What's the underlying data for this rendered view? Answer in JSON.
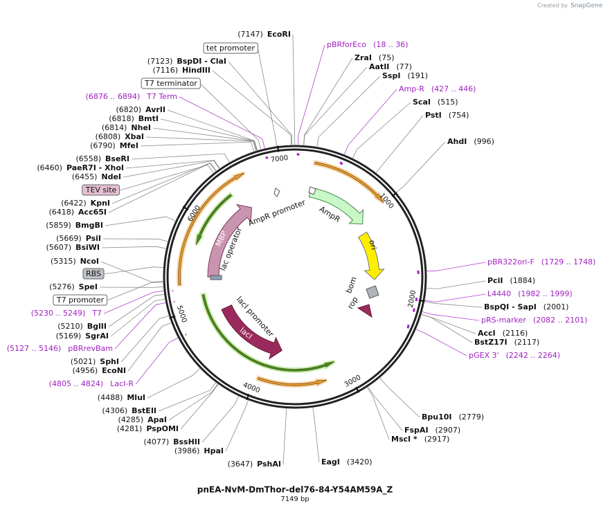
{
  "header": {
    "watermark": {
      "text": "Created by",
      "brand": "SnapGene"
    }
  },
  "map": {
    "title": "pnEA-NvM-DmThor-del76-84-Y54AM59A_Z",
    "length": "7149 bp",
    "ring_ticks": [
      1000,
      2000,
      3000,
      4000,
      5000,
      6000,
      7000
    ],
    "sites": [
      {
        "name": "EcoRI",
        "position": "(7147)"
      },
      {
        "name": "BspDI  - ClaI",
        "position": "(7123)"
      },
      {
        "name": "HindIII",
        "position": "(7116)"
      },
      {
        "name": "AvrII",
        "position": "(6820)"
      },
      {
        "name": "BmtI",
        "position": "(6818)"
      },
      {
        "name": "NheI",
        "position": "(6814)"
      },
      {
        "name": "XbaI",
        "position": "(6808)"
      },
      {
        "name": "MfeI",
        "position": "(6790)"
      },
      {
        "name": "BseRI",
        "position": "(6558)"
      },
      {
        "name": "PaeR7I  - XhoI",
        "position": "(6460)"
      },
      {
        "name": "NdeI",
        "position": "(6455)"
      },
      {
        "name": "KpnI",
        "position": "(6422)"
      },
      {
        "name": "Acc65I",
        "position": "(6418)"
      },
      {
        "name": "BmgBI",
        "position": "(5859)"
      },
      {
        "name": "PsiI",
        "position": "(5669)"
      },
      {
        "name": "BsiWI",
        "position": "(5607)"
      },
      {
        "name": "NcoI",
        "position": "(5315)"
      },
      {
        "name": "SpeI",
        "position": "(5276)"
      },
      {
        "name": "BglII",
        "position": "(5210)"
      },
      {
        "name": "SgrAI",
        "position": "(5169)"
      },
      {
        "name": "SphI",
        "position": "(5021)"
      },
      {
        "name": "EcoNI",
        "position": "(4956)"
      },
      {
        "name": "MluI",
        "position": "(4488)"
      },
      {
        "name": "BstEII",
        "position": "(4306)"
      },
      {
        "name": "ApaI",
        "position": "(4285)"
      },
      {
        "name": "PspOMI",
        "position": "(4281)"
      },
      {
        "name": "BssHII",
        "position": "(4077)"
      },
      {
        "name": "HpaI",
        "position": "(3986)"
      },
      {
        "name": "PshAI",
        "position": "(3647)"
      },
      {
        "name": "EagI",
        "position": "(3420)"
      },
      {
        "name": "MscI *",
        "position": "(2917)"
      },
      {
        "name": "FspAI",
        "position": "(2907)"
      },
      {
        "name": "Bpu10I",
        "position": "(2779)"
      },
      {
        "name": "BstZ17I",
        "position": "(2117)"
      },
      {
        "name": "AccI",
        "position": "(2116)"
      },
      {
        "name": "BspQI  - SapI",
        "position": "(2001)"
      },
      {
        "name": "PciI",
        "position": "(1884)"
      },
      {
        "name": "AhdI",
        "position": "(996)"
      },
      {
        "name": "PstI",
        "position": "(754)"
      },
      {
        "name": "ScaI",
        "position": "(515)"
      },
      {
        "name": "SspI",
        "position": "(191)"
      },
      {
        "name": "AatII",
        "position": "(77)"
      },
      {
        "name": "ZraI",
        "position": "(75)"
      }
    ],
    "primers": [
      {
        "name": "pBRforEco",
        "range": "(18 .. 36)"
      },
      {
        "name": "Amp-R",
        "range": "(427 .. 446)"
      },
      {
        "name": "pBR322ori-F",
        "range": "(1729 .. 1748)"
      },
      {
        "name": "L4440",
        "range": "(1982 .. 1999)"
      },
      {
        "name": "pRS-marker",
        "range": "(2082 .. 2101)"
      },
      {
        "name": "pGEX 3'",
        "range": "(2242 .. 2264)"
      },
      {
        "name": "T7 Term",
        "range": "(6876 .. 6894)"
      },
      {
        "name": "T7",
        "range": "(5230 .. 5249)"
      },
      {
        "name": "pBRrevBam",
        "range": "(5127 .. 5146)"
      },
      {
        "name": "LacI-R",
        "range": "(4805 .. 4824)"
      }
    ],
    "boxed_features": [
      "tet promoter",
      "T7 terminator",
      "TEV site",
      "RBS",
      "T7 promoter"
    ],
    "features": [
      "AmpR promoter",
      "AmpR",
      "ori",
      "bom",
      "rop",
      "MBP",
      "lac operator",
      "lacI promoter",
      "lacI"
    ]
  }
}
